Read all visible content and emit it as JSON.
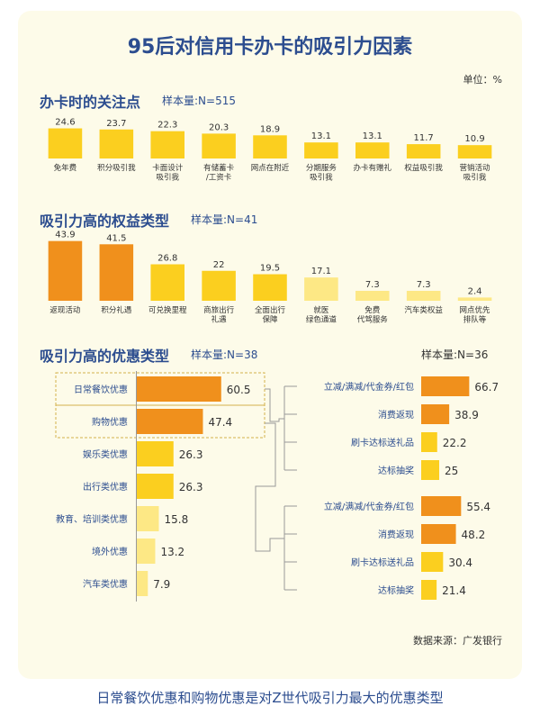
{
  "title": "95后对信用卡办卡的吸引力因素",
  "unit": "单位：%",
  "source": "数据来源：广发银行",
  "caption": "日常餐饮优惠和购物优惠是对Z世代吸引力最大的优惠类型",
  "colors": {
    "title": "#2c4d8f",
    "orange": "#f0901c",
    "yellow": "#fbcf1f",
    "pale": "#fde885",
    "line": "#d4b24a"
  },
  "chart_data": [
    {
      "type": "bar",
      "title": "办卡时的关注点",
      "sample": "样本量:N=515",
      "categories": [
        "免年费",
        "积分吸引我",
        "卡面设计\n吸引我",
        "有储蓄卡\n/工资卡",
        "网点在附近",
        "分期服务\n吸引我",
        "办卡有赠礼",
        "权益吸引我",
        "营销活动\n吸引我"
      ],
      "values": [
        24.6,
        23.7,
        22.3,
        20.3,
        18.9,
        13.1,
        13.1,
        11.7,
        10.9
      ],
      "ylim": [
        0,
        25
      ]
    },
    {
      "type": "bar",
      "title": "吸引力高的权益类型",
      "sample": "样本量:N=41",
      "categories": [
        "返现活动",
        "积分礼遇",
        "可兑换里程",
        "商旅出行\n礼遇",
        "全面出行\n保障",
        "就医\n绿色通道",
        "免费\n代驾服务",
        "汽车类权益",
        "网点优先\n排队等"
      ],
      "values": [
        43.9,
        41.5,
        26.8,
        22,
        19.5,
        17.1,
        7.3,
        7.3,
        2.4
      ],
      "ylim": [
        0,
        45
      ]
    },
    {
      "type": "bar",
      "orientation": "horizontal",
      "title": "吸引力高的优惠类型",
      "sample": "样本量:N=38",
      "categories": [
        "日常餐饮优惠",
        "购物优惠",
        "娱乐类优惠",
        "出行类优惠",
        "教育、培训类优惠",
        "境外优惠",
        "汽车类优惠"
      ],
      "values": [
        60.5,
        47.4,
        26.3,
        26.3,
        15.8,
        13.2,
        7.9
      ],
      "xlim": [
        0,
        100
      ]
    },
    {
      "type": "bar",
      "orientation": "horizontal",
      "sample": "样本量:N=36",
      "groups": [
        {
          "parent": "日常餐饮优惠",
          "categories": [
            "立减/满减/代金券/红包",
            "消费返现",
            "刷卡达标送礼品",
            "达标抽奖"
          ],
          "values": [
            66.7,
            38.9,
            22.2,
            25
          ]
        },
        {
          "parent": "购物优惠",
          "categories": [
            "立减/满减/代金券/红包",
            "消费返现",
            "刷卡达标送礼品",
            "达标抽奖"
          ],
          "values": [
            55.4,
            48.2,
            30.4,
            21.4
          ]
        }
      ],
      "xlim": [
        0,
        100
      ]
    }
  ]
}
